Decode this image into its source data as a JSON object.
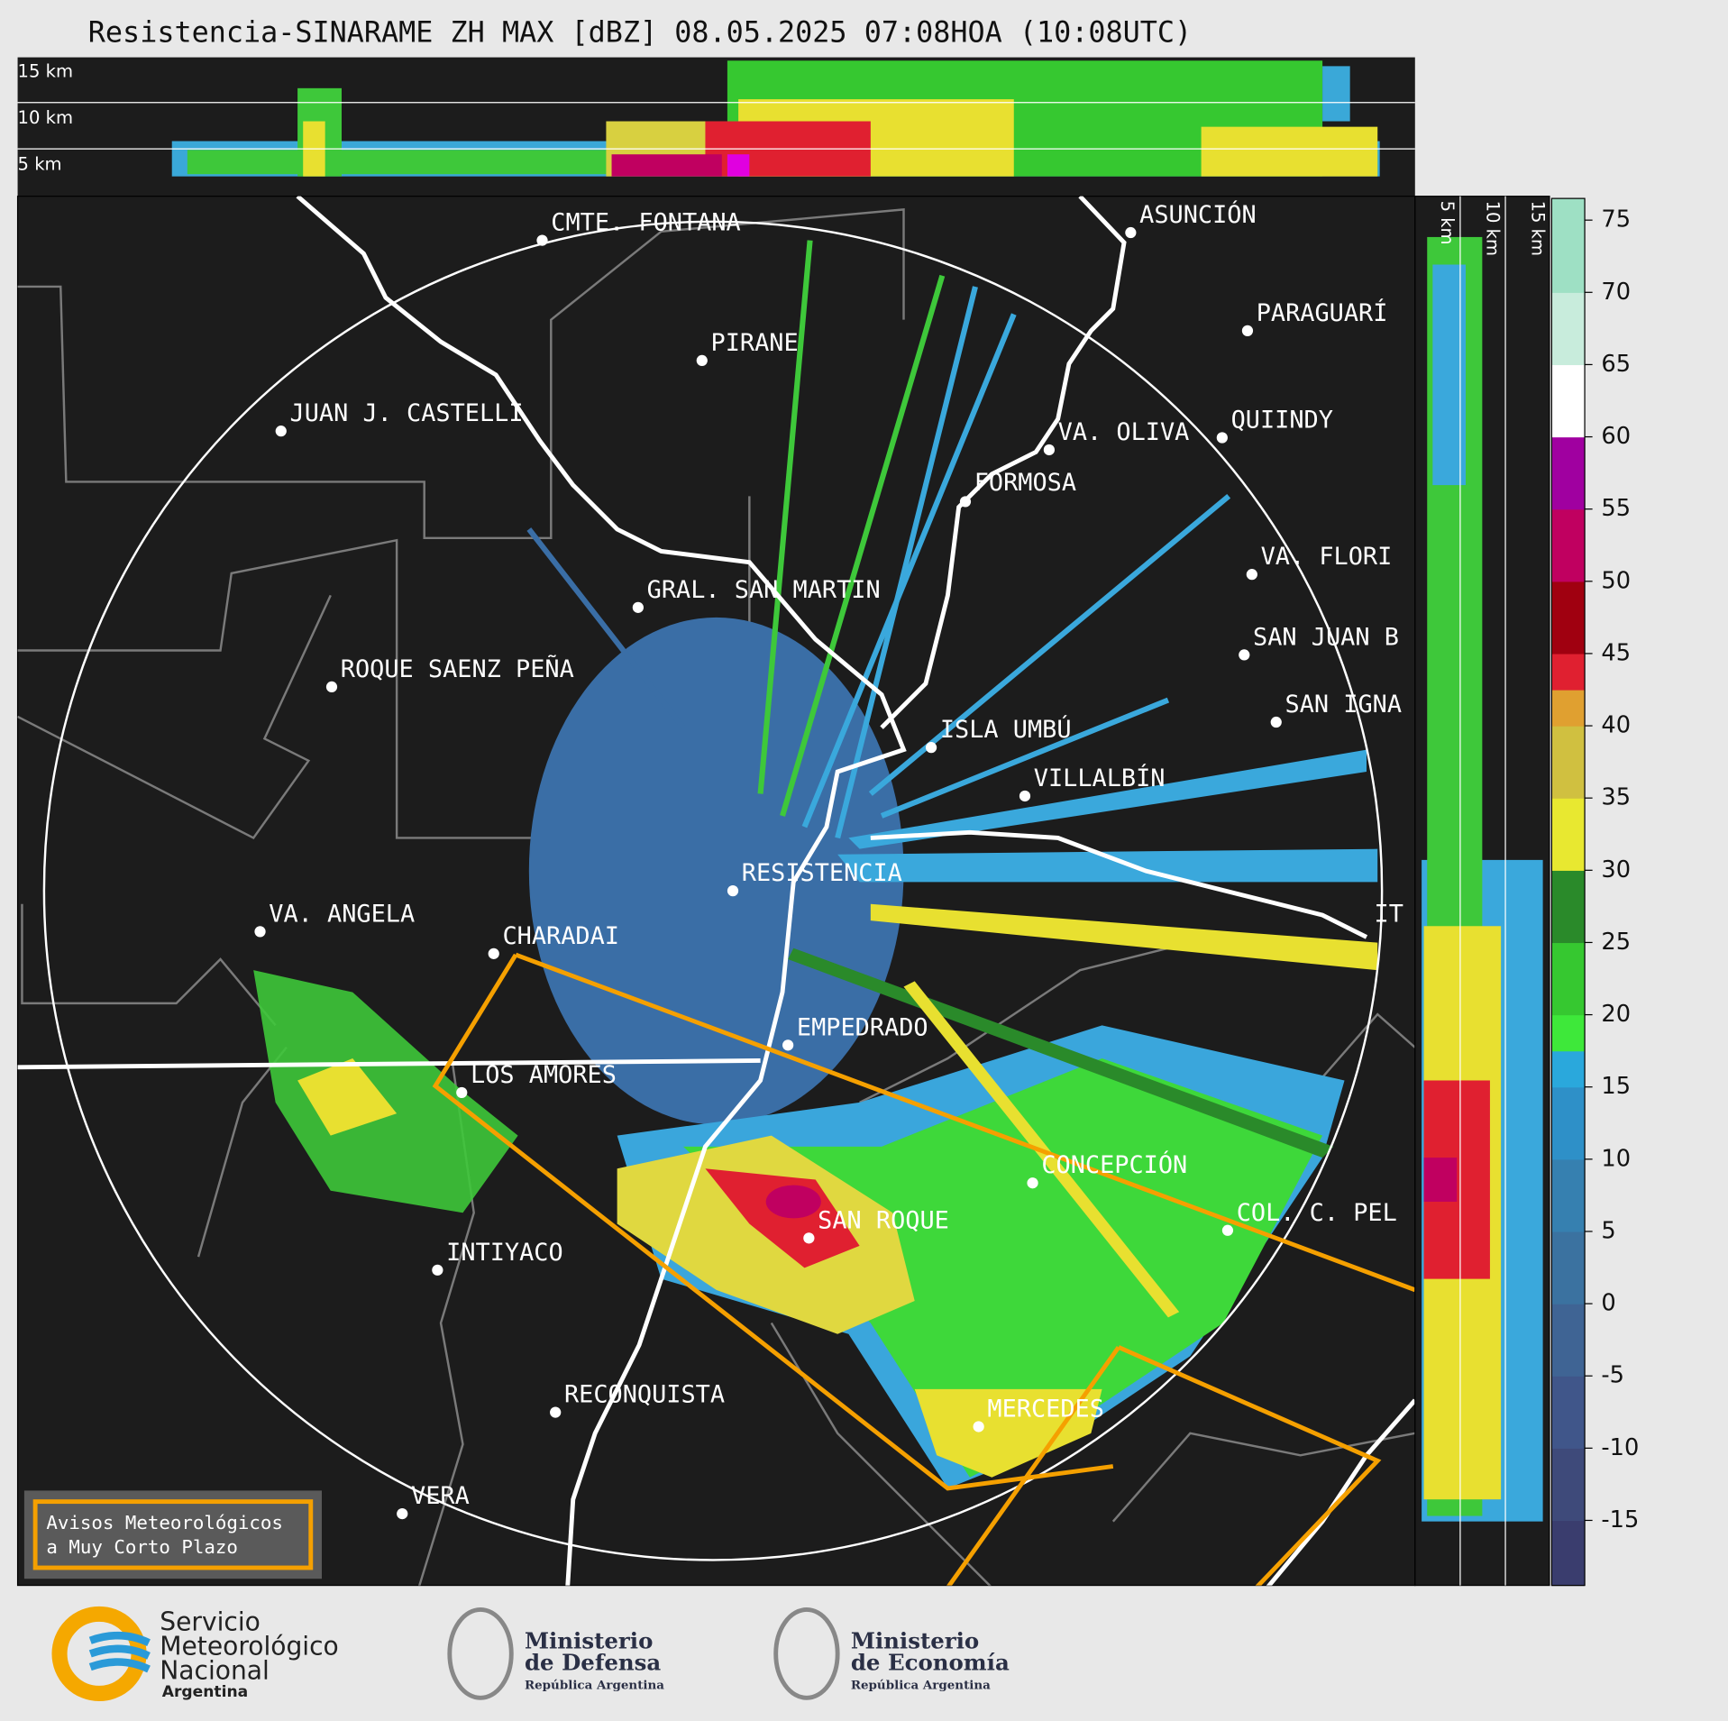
{
  "title": "Resistencia-SINARAME ZH MAX [dBZ] 08.05.2025 07:08HOA (10:08UTC)",
  "top_panel": {
    "labels": [
      "15 km",
      "10 km",
      "5 km"
    ]
  },
  "side_panel": {
    "labels": [
      "5 km",
      "10 km",
      "15 km"
    ]
  },
  "cities": [
    "CMTE. FONTANA",
    "PIRANE",
    "JUAN J. CASTELLI",
    "GRAL. SAN MARTIN",
    "ROQUE SAENZ PEÑA",
    "RESISTENCIA",
    "VA. ANGELA",
    "CHARADAI",
    "EMPEDRADO",
    "LOS AMORES",
    "SAN ROQUE",
    "INTIYACO",
    "CONCEPCIÓN",
    "COL. C. PEL",
    "MERCEDES",
    "RECONQUISTA",
    "VERA",
    "ASUNCIÓN",
    "PARAGUARÍ",
    "VA. OLIVA",
    "QUIINDY",
    "FORMOSA",
    "VA. FLORI",
    "SAN JUAN B",
    "SAN IGNA",
    "ISLA UMBÚ",
    "VILLALBÍN",
    "IT"
  ],
  "warning_box": [
    "Avisos Meteorológicos",
    "a Muy Corto Plazo"
  ],
  "colorbar": {
    "lim": [
      -19.5,
      76.5
    ],
    "ticks": [
      -15,
      -10,
      -5,
      0,
      5,
      10,
      15,
      20,
      25,
      30,
      35,
      40,
      45,
      50,
      55,
      60,
      65,
      70,
      75
    ],
    "levels": [
      -20,
      -15,
      -10,
      -5,
      0,
      5,
      10,
      15,
      17.5,
      20,
      25,
      30,
      35,
      40,
      42.5,
      45,
      50,
      55,
      60,
      65,
      70,
      77.5
    ],
    "colors": [
      "#3a3d6e",
      "#3e4a7a",
      "#40568a",
      "#3f6494",
      "#3b72a0",
      "#3680b0",
      "#2e90c8",
      "#2aa8dc",
      "#3ee83a",
      "#36c830",
      "#2a8a2a",
      "#e8e830",
      "#d0c040",
      "#e0a030",
      "#e02030",
      "#a00010",
      "#c00060",
      "#a000a0",
      "#ffffff",
      "#c8ecdc",
      "#9ee0c4"
    ]
  },
  "footer": {
    "smn": [
      "Servicio",
      "Meteorológico",
      "Nacional",
      "Argentina"
    ],
    "defensa": [
      "Ministerio",
      "de Defensa",
      "República Argentina"
    ],
    "economia": [
      "Ministerio",
      "de Economía",
      "República Argentina"
    ]
  }
}
